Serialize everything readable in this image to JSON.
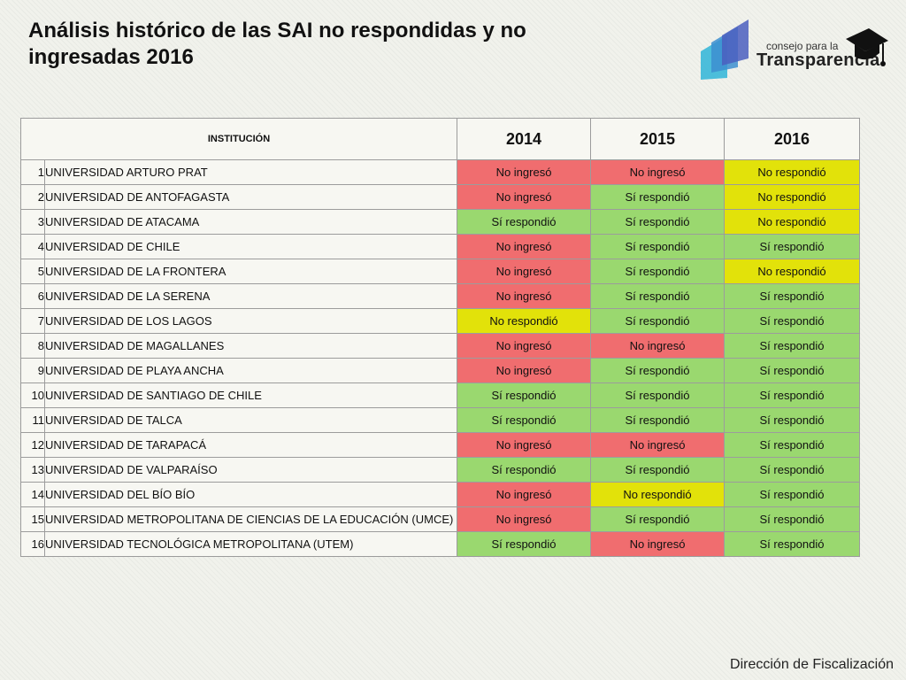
{
  "title": "Análisis histórico de las SAI no respondidas y no ingresadas 2016",
  "logo": {
    "line1": "consejo para la",
    "line2": "Transparencia"
  },
  "footer": "Dirección de Fiscalización",
  "table": {
    "header": {
      "institution": "INSTITUCIÓN",
      "years": [
        "2014",
        "2015",
        "2016"
      ]
    },
    "status_colors": {
      "No ingresó": "#f06d6f",
      "Sí respondió": "#9ad86f",
      "No respondió": "#e2e20a"
    },
    "rows": [
      {
        "n": "1",
        "name": "UNIVERSIDAD ARTURO PRAT",
        "y2014": "No ingresó",
        "y2015": "No ingresó",
        "y2016": "No respondió"
      },
      {
        "n": "2",
        "name": "UNIVERSIDAD DE ANTOFAGASTA",
        "y2014": "No ingresó",
        "y2015": "Sí respondió",
        "y2016": "No respondió"
      },
      {
        "n": "3",
        "name": "UNIVERSIDAD DE ATACAMA",
        "y2014": "Sí respondió",
        "y2015": "Sí respondió",
        "y2016": "No respondió"
      },
      {
        "n": "4",
        "name": "UNIVERSIDAD DE CHILE",
        "y2014": "No ingresó",
        "y2015": "Sí respondió",
        "y2016": "Sí respondió"
      },
      {
        "n": "5",
        "name": "UNIVERSIDAD DE LA FRONTERA",
        "y2014": "No ingresó",
        "y2015": "Sí respondió",
        "y2016": "No respondió"
      },
      {
        "n": "6",
        "name": "UNIVERSIDAD DE LA SERENA",
        "y2014": "No ingresó",
        "y2015": "Sí respondió",
        "y2016": "Sí respondió"
      },
      {
        "n": "7",
        "name": "UNIVERSIDAD DE LOS LAGOS",
        "y2014": "No respondió",
        "y2015": "Sí respondió",
        "y2016": "Sí respondió"
      },
      {
        "n": "8",
        "name": "UNIVERSIDAD DE MAGALLANES",
        "y2014": "No ingresó",
        "y2015": "No ingresó",
        "y2016": "Sí respondió"
      },
      {
        "n": "9",
        "name": "UNIVERSIDAD DE PLAYA ANCHA",
        "y2014": "No ingresó",
        "y2015": "Sí respondió",
        "y2016": "Sí respondió"
      },
      {
        "n": "10",
        "name": "UNIVERSIDAD DE SANTIAGO DE CHILE",
        "y2014": "Sí respondió",
        "y2015": "Sí respondió",
        "y2016": "Sí respondió"
      },
      {
        "n": "11",
        "name": "UNIVERSIDAD DE TALCA",
        "y2014": "Sí respondió",
        "y2015": "Sí respondió",
        "y2016": "Sí respondió"
      },
      {
        "n": "12",
        "name": "UNIVERSIDAD DE TARAPACÁ",
        "y2014": "No ingresó",
        "y2015": "No ingresó",
        "y2016": "Sí respondió"
      },
      {
        "n": "13",
        "name": "UNIVERSIDAD DE VALPARAÍSO",
        "y2014": "Sí respondió",
        "y2015": "Sí respondió",
        "y2016": "Sí respondió"
      },
      {
        "n": "14",
        "name": "UNIVERSIDAD DEL BÍO BÍO",
        "y2014": "No ingresó",
        "y2015": "No respondió",
        "y2016": "Sí respondió"
      },
      {
        "n": "15",
        "name": "UNIVERSIDAD METROPOLITANA DE CIENCIAS DE LA EDUCACIÓN (UMCE)",
        "y2014": "No ingresó",
        "y2015": "Sí respondió",
        "y2016": "Sí respondió"
      },
      {
        "n": "16",
        "name": "UNIVERSIDAD TECNOLÓGICA METROPOLITANA (UTEM)",
        "y2014": "Sí respondió",
        "y2015": "No ingresó",
        "y2016": "Sí respondió"
      }
    ]
  }
}
